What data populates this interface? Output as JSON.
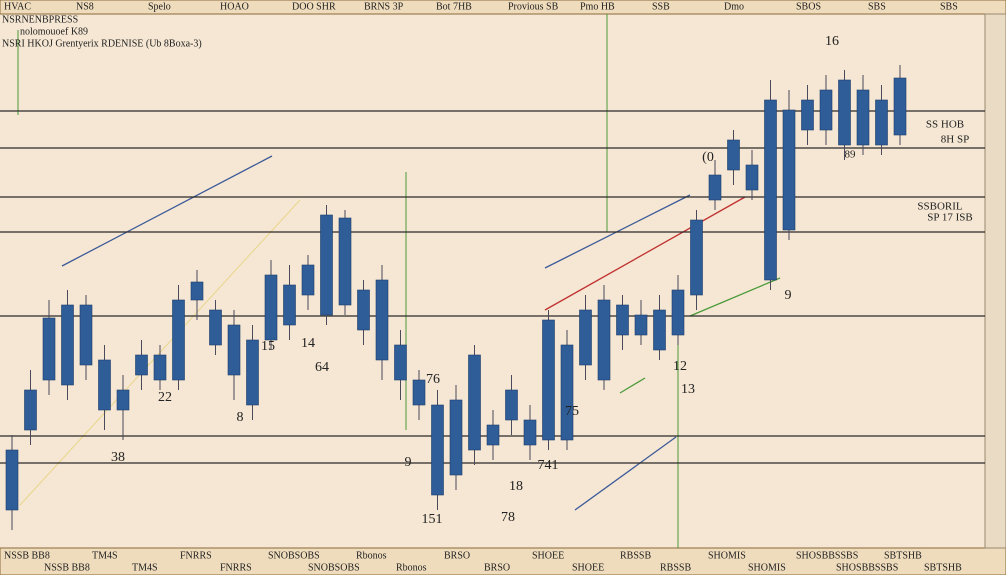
{
  "chart_data": {
    "type": "candlestick",
    "toolbar": [
      "HVAC",
      "NS8",
      "Spelo",
      "HOAO",
      "DOO SHR",
      "BRNS 3P",
      "Bot 7HB",
      "Provious SB",
      "Pmo HB",
      "SSB",
      "Dmo",
      "SBOS",
      "SBS",
      "SBS"
    ],
    "header_lines": [
      "NSRNENBPRESS",
      "nolomouoef K89",
      "NSRI HKOJ  Grentyerix RDENISE (Ub 8Boxa-3)"
    ],
    "annotations": [
      "16",
      "22",
      "38",
      "8",
      "15",
      "14",
      "64",
      "76",
      "9",
      "741",
      "18",
      "151",
      "78",
      "75",
      "12",
      "13",
      "9",
      "(0",
      "89",
      "SS HOB",
      "8H SP",
      "SSBORIL",
      "SP 17 ISB"
    ],
    "footer": [
      "NSSB BB8",
      "TM4S",
      "FNRRS",
      "SNOBSOBS",
      "Rbonos",
      "BRSO",
      "SHOEE",
      "RBSSB",
      "SHOMIS",
      "SHOSBBSSBS",
      "SBTSHB"
    ],
    "ylim": [
      0,
      510
    ],
    "levels": [
      429,
      392,
      343,
      308,
      224,
      104,
      77
    ],
    "color": "#2f5d98",
    "open": [
      30,
      110,
      160,
      155,
      175,
      130,
      130,
      165,
      160,
      160,
      240,
      195,
      165,
      135,
      200,
      215,
      245,
      225,
      235,
      210,
      180,
      160,
      135,
      45,
      65,
      90,
      95,
      120,
      95,
      100,
      100,
      175,
      160,
      205,
      205,
      190,
      205,
      245,
      340,
      370,
      350,
      260,
      310,
      410,
      410,
      395,
      395,
      395,
      405
    ],
    "high": [
      105,
      170,
      240,
      250,
      245,
      195,
      165,
      200,
      195,
      255,
      270,
      240,
      230,
      215,
      280,
      275,
      285,
      335,
      330,
      260,
      275,
      210,
      170,
      150,
      155,
      195,
      130,
      165,
      135,
      230,
      210,
      245,
      255,
      245,
      240,
      245,
      265,
      330,
      380,
      410,
      390,
      460,
      450,
      455,
      465,
      470,
      465,
      455,
      475
    ],
    "low": [
      10,
      95,
      145,
      140,
      160,
      110,
      100,
      150,
      150,
      150,
      220,
      185,
      140,
      120,
      190,
      200,
      230,
      215,
      225,
      195,
      160,
      140,
      120,
      30,
      50,
      75,
      80,
      105,
      80,
      90,
      90,
      160,
      150,
      190,
      195,
      180,
      195,
      230,
      330,
      355,
      340,
      250,
      300,
      395,
      395,
      380,
      385,
      385,
      395
    ],
    "close": [
      90,
      150,
      222,
      235,
      235,
      180,
      150,
      185,
      185,
      240,
      258,
      230,
      215,
      200,
      265,
      255,
      275,
      325,
      322,
      250,
      260,
      195,
      160,
      135,
      140,
      185,
      115,
      150,
      120,
      220,
      195,
      230,
      240,
      235,
      225,
      230,
      250,
      320,
      365,
      400,
      375,
      440,
      430,
      440,
      450,
      460,
      450,
      440,
      462
    ]
  }
}
